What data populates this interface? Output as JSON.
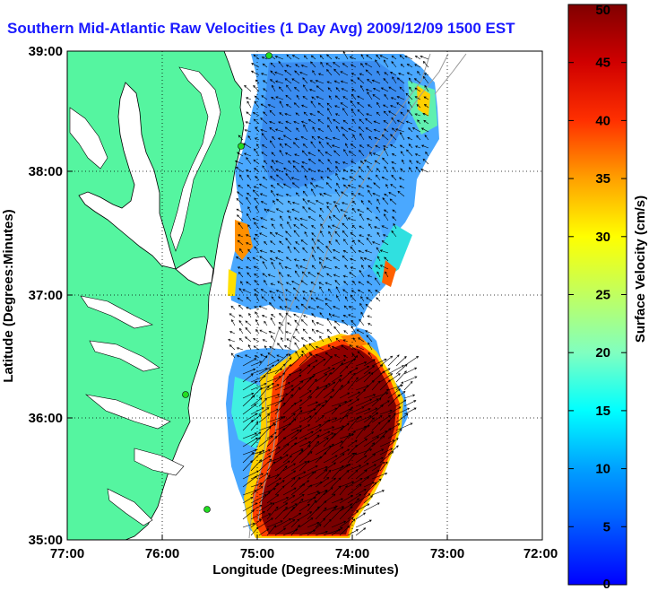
{
  "title": "Southern Mid-Atlantic Raw Velocities (1 Day Avg) 2009/12/09 1500 EST",
  "chart_data": {
    "type": "heatmap",
    "title": "Southern Mid-Atlantic Raw Velocities (1 Day Avg) 2009/12/09 1500 EST",
    "xlabel": "Longitude (Degrees:Minutes)",
    "ylabel": "Latitude (Degrees:Minutes)",
    "x_ticks": [
      "77:00",
      "76:00",
      "75:00",
      "74:00",
      "73:00",
      "72:00"
    ],
    "y_ticks": [
      "39:00",
      "38:00",
      "37:00",
      "36:00",
      "35:00"
    ],
    "xlim": [
      -77,
      -72
    ],
    "ylim": [
      35,
      39
    ],
    "grid": true,
    "colorbar": {
      "label": "Surface Velocity (cm/s)",
      "range": [
        0,
        50
      ],
      "ticks": [
        "50",
        "45",
        "40",
        "35",
        "30",
        "25",
        "20",
        "15",
        "10",
        "5",
        "0"
      ],
      "colormap": "jet"
    }
  },
  "colors": {
    "land": "#55f5a0",
    "water": "#ffffff",
    "title": "#1a1aff"
  }
}
